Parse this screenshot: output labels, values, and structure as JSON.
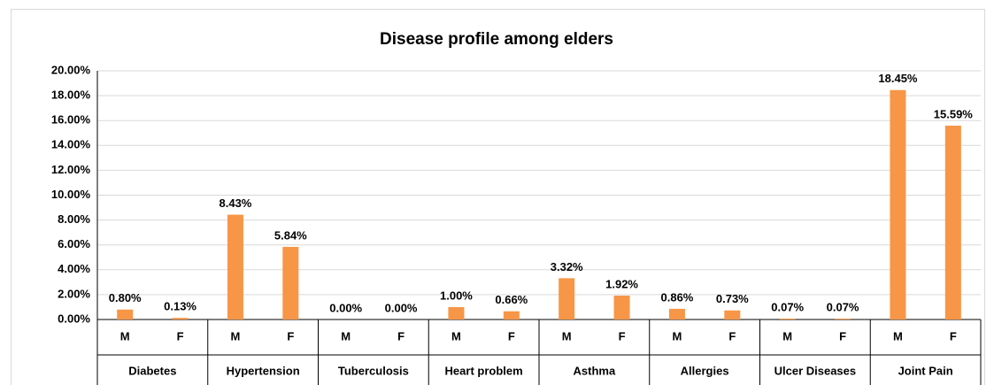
{
  "chart_data": {
    "type": "bar",
    "title": "Disease profile among elders",
    "groups": [
      "Diabetes",
      "Hypertension",
      "Tuberculosis",
      "Heart problem",
      "Asthma",
      "Allergies",
      "Ulcer Diseases",
      "Joint Pain"
    ],
    "categories": [
      "M",
      "F",
      "M",
      "F",
      "M",
      "F",
      "M",
      "F",
      "M",
      "F",
      "M",
      "F",
      "M",
      "F",
      "M",
      "F"
    ],
    "values": [
      0.8,
      0.13,
      8.43,
      5.84,
      0,
      0,
      1,
      0.66,
      3.32,
      1.92,
      0.86,
      0.73,
      0.07,
      0.07,
      18.45,
      15.59
    ],
    "value_labels": [
      "0.80%",
      "0.13%",
      "8.43%",
      "5.84%",
      "0.00%",
      "0.00%",
      "1.00%",
      "0.66%",
      "3.32%",
      "1.92%",
      "0.86%",
      "0.73%",
      "0.07%",
      "0.07%",
      "18.45%",
      "15.59%"
    ],
    "color": "#f79646",
    "ylim": [
      0,
      20
    ],
    "yticks": [
      {
        "value": 0,
        "label": "0.00%"
      },
      {
        "value": 2,
        "label": "2.00%"
      },
      {
        "value": 4,
        "label": "4.00%"
      },
      {
        "value": 6,
        "label": "6.00%"
      },
      {
        "value": 8,
        "label": "8.00%"
      },
      {
        "value": 10,
        "label": "10.00%"
      },
      {
        "value": 12,
        "label": "12.00%"
      },
      {
        "value": 14,
        "label": "14.00%"
      },
      {
        "value": 16,
        "label": "16.00%"
      },
      {
        "value": 18,
        "label": "18.00%"
      },
      {
        "value": 20,
        "label": "20.00%"
      }
    ],
    "grid": true
  }
}
